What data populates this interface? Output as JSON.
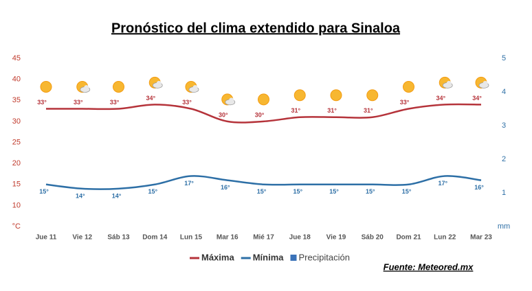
{
  "chart_data": {
    "type": "line",
    "title": "Pronóstico del clima extendido para Sinaloa",
    "annotation": "Fuente: Meteored.mx",
    "categories": [
      "Jue 11",
      "Vie 12",
      "Sáb 13",
      "Dom 14",
      "Lun 15",
      "Mar 16",
      "Mié 17",
      "Jue 18",
      "Vie 19",
      "Sáb 20",
      "Dom 21",
      "Lun 22",
      "Mar 23"
    ],
    "series": [
      {
        "name": "Máxima",
        "color": "#b5333a",
        "values": [
          33,
          33,
          33,
          34,
          33,
          30,
          30,
          31,
          31,
          31,
          33,
          34,
          34
        ],
        "value_labels": [
          "33°",
          "33°",
          "33°",
          "34°",
          "33°",
          "30°",
          "30°",
          "31°",
          "31°",
          "31°",
          "33°",
          "34°",
          "34°"
        ]
      },
      {
        "name": "Mínima",
        "color": "#2d6fa6",
        "values": [
          15,
          14,
          14,
          15,
          17,
          16,
          15,
          15,
          15,
          15,
          15,
          17,
          16
        ],
        "value_labels": [
          "15°",
          "14°",
          "14°",
          "15°",
          "17°",
          "16°",
          "15°",
          "15°",
          "15°",
          "15°",
          "15°",
          "17°",
          "16°"
        ]
      },
      {
        "name": "Precipitación",
        "color": "#3a72b8",
        "axis": "y2",
        "type": "bar",
        "values": [
          0,
          0,
          0,
          0,
          0,
          0,
          0,
          0,
          0,
          0,
          0,
          0,
          0
        ]
      }
    ],
    "ylim": [
      5,
      45
    ],
    "yticks": [
      {
        "value": 5,
        "label": "°C"
      },
      10,
      15,
      20,
      25,
      30,
      35,
      40,
      45
    ],
    "y2lim": [
      0,
      5
    ],
    "y2ticks": [
      {
        "value": 0,
        "label": "mm"
      },
      1,
      2,
      3,
      4,
      5
    ]
  }
}
